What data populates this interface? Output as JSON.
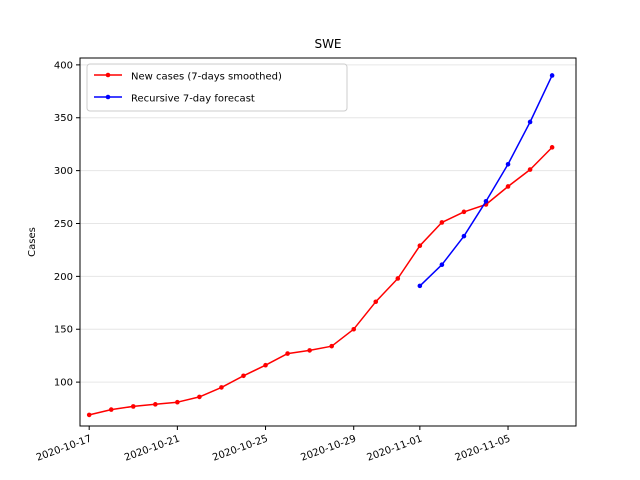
{
  "chart_data": {
    "type": "line",
    "title": "SWE",
    "xlabel": "",
    "ylabel": "Cases",
    "xlim": [
      "2020-10-16T14:00",
      "2020-11-08T02:00"
    ],
    "ylim": [
      58.5,
      406.5
    ],
    "grid": "horizontal",
    "legend_position": "top-left",
    "x_ticks": [
      "2020-10-17",
      "2020-10-21",
      "2020-10-25",
      "2020-10-29",
      "2020-11-01",
      "2020-11-05"
    ],
    "y_ticks": [
      100,
      150,
      200,
      250,
      300,
      350,
      400
    ],
    "series": [
      {
        "name": "New cases (7-days smoothed)",
        "color": "#ff0000",
        "x": [
          "2020-10-17",
          "2020-10-18",
          "2020-10-19",
          "2020-10-20",
          "2020-10-21",
          "2020-10-22",
          "2020-10-23",
          "2020-10-24",
          "2020-10-25",
          "2020-10-26",
          "2020-10-27",
          "2020-10-28",
          "2020-10-29",
          "2020-10-30",
          "2020-10-31",
          "2020-11-01",
          "2020-11-02",
          "2020-11-03",
          "2020-11-04",
          "2020-11-05",
          "2020-11-06",
          "2020-11-07"
        ],
        "values": [
          69,
          74,
          77,
          79,
          81,
          86,
          95,
          106,
          116,
          127,
          130,
          134,
          150,
          176,
          198,
          229,
          251,
          261,
          268,
          285,
          301,
          322
        ]
      },
      {
        "name": "Recursive 7-day forecast",
        "color": "#0000ff",
        "x": [
          "2020-11-01",
          "2020-11-02",
          "2020-11-03",
          "2020-11-04",
          "2020-11-05",
          "2020-11-06",
          "2020-11-07"
        ],
        "values": [
          191,
          211,
          238,
          271,
          306,
          346,
          390
        ]
      }
    ]
  }
}
